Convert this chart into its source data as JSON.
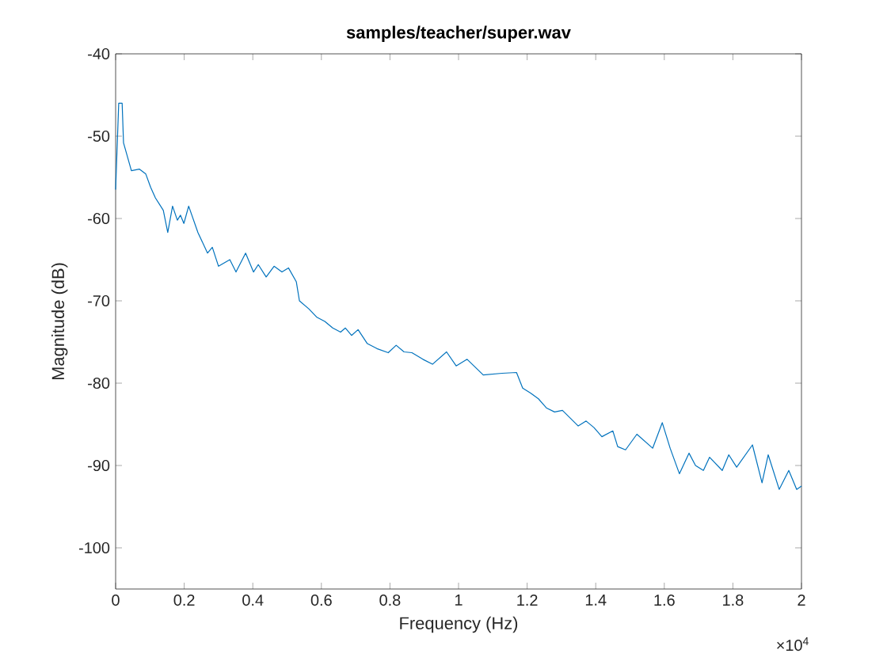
{
  "chart_data": {
    "type": "line",
    "title": "samples/teacher/super.wav",
    "xlabel": "Frequency (Hz)",
    "ylabel": "Magnitude (dB)",
    "x": [
      0,
      0.009,
      0.019,
      0.023,
      0.046,
      0.069,
      0.088,
      0.102,
      0.116,
      0.139,
      0.152,
      0.166,
      0.18,
      0.189,
      0.199,
      0.213,
      0.24,
      0.268,
      0.282,
      0.3,
      0.333,
      0.351,
      0.379,
      0.402,
      0.416,
      0.439,
      0.462,
      0.485,
      0.504,
      0.527,
      0.536,
      0.564,
      0.587,
      0.61,
      0.633,
      0.656,
      0.67,
      0.688,
      0.707,
      0.734,
      0.762,
      0.795,
      0.818,
      0.841,
      0.864,
      0.896,
      0.924,
      0.965,
      0.993,
      1.025,
      1.072,
      1.127,
      1.169,
      1.187,
      1.21,
      1.233,
      1.256,
      1.28,
      1.303,
      1.349,
      1.372,
      1.395,
      1.418,
      1.45,
      1.464,
      1.487,
      1.52,
      1.566,
      1.594,
      1.617,
      1.644,
      1.672,
      1.691,
      1.714,
      1.732,
      1.769,
      1.788,
      1.811,
      1.857,
      1.885,
      1.903,
      1.935,
      1.963,
      1.986,
      2
    ],
    "values": [
      -56.5,
      -46,
      -46,
      -50.8,
      -54.2,
      -54,
      -54.6,
      -56.2,
      -57.5,
      -59,
      -61.7,
      -58.5,
      -60.2,
      -59.6,
      -60.6,
      -58.5,
      -61.7,
      -64.2,
      -63.5,
      -65.8,
      -65,
      -66.5,
      -64.2,
      -66.5,
      -65.6,
      -67.1,
      -65.8,
      -66.5,
      -66,
      -67.7,
      -70,
      -71,
      -72,
      -72.5,
      -73.3,
      -73.8,
      -73.3,
      -74.2,
      -73.5,
      -75.2,
      -75.8,
      -76.3,
      -75.4,
      -76.2,
      -76.3,
      -77.1,
      -77.7,
      -76.2,
      -77.9,
      -77.1,
      -79,
      -78.8,
      -78.7,
      -80.6,
      -81.2,
      -81.9,
      -83,
      -83.5,
      -83.3,
      -85.2,
      -84.6,
      -85.4,
      -86.5,
      -85.8,
      -87.7,
      -88.1,
      -86.2,
      -87.9,
      -84.8,
      -87.9,
      -91,
      -88.5,
      -90,
      -90.6,
      -89,
      -90.6,
      -88.7,
      -90.2,
      -87.5,
      -92.1,
      -88.7,
      -92.9,
      -90.6,
      -92.9,
      -92.5
    ],
    "color": "#0072bd",
    "xlim": [
      0,
      2
    ],
    "ylim": [
      -105,
      -40
    ],
    "xticks": [
      0,
      0.2,
      0.4,
      0.6,
      0.8,
      1,
      1.2,
      1.4,
      1.6,
      1.8,
      2
    ],
    "yticks": [
      -100,
      -90,
      -80,
      -70,
      -60,
      -50,
      -40
    ],
    "annotations": [
      "×10$^{4}$"
    ]
  }
}
